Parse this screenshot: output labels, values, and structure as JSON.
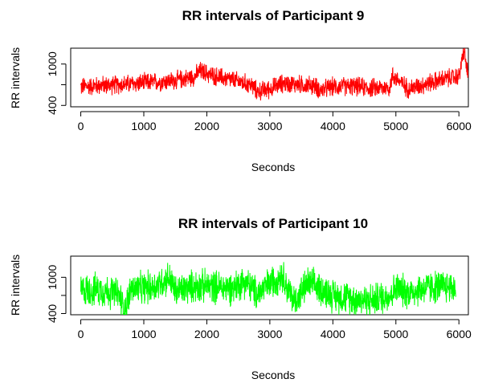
{
  "chart_data": [
    {
      "type": "line",
      "title": "RR intervals of Participant 9",
      "xlabel": "Seconds",
      "ylabel": "RR intervals",
      "x_ticks": [
        0,
        1000,
        2000,
        3000,
        4000,
        5000,
        6000
      ],
      "y_ticks": [
        400,
        1000
      ],
      "xlim": [
        -160,
        6150
      ],
      "ylim": [
        380,
        1230
      ],
      "grid": false,
      "legend": "none",
      "color": "#ff0000",
      "series": [
        {
          "x": [
            0,
            300,
            600,
            900,
            1200,
            1500,
            1800,
            1900,
            2100,
            2400,
            2700,
            2800,
            3000,
            3200,
            3500,
            3700,
            3800,
            4000,
            4300,
            4600,
            4900,
            4950,
            5200,
            5500,
            5800,
            6000,
            6080,
            6150
          ],
          "y": [
            670,
            690,
            700,
            720,
            740,
            760,
            820,
            900,
            830,
            770,
            700,
            600,
            640,
            720,
            700,
            690,
            620,
            670,
            680,
            650,
            660,
            830,
            640,
            720,
            790,
            820,
            1200,
            800
          ]
        }
      ]
    },
    {
      "type": "line",
      "title": "RR intervals of Participant 10",
      "xlabel": "Seconds",
      "ylabel": "RR intervals",
      "x_ticks": [
        0,
        1000,
        2000,
        3000,
        4000,
        5000,
        6000
      ],
      "y_ticks": [
        400,
        1000
      ],
      "xlim": [
        -160,
        6150
      ],
      "ylim": [
        380,
        1350
      ],
      "grid": false,
      "legend": "none",
      "color": "#00ff00",
      "series": [
        {
          "x": [
            0,
            300,
            600,
            700,
            800,
            900,
            1200,
            1400,
            1500,
            1800,
            2100,
            2400,
            2600,
            2800,
            3000,
            3200,
            3300,
            3400,
            3600,
            3800,
            4000,
            4300,
            4600,
            4900,
            5000,
            5200,
            5500,
            5800,
            5950
          ],
          "y": [
            780,
            800,
            720,
            450,
            820,
            800,
            860,
            1000,
            760,
            860,
            850,
            820,
            940,
            720,
            900,
            1050,
            760,
            600,
            900,
            820,
            700,
            650,
            620,
            700,
            820,
            750,
            830,
            850,
            830
          ]
        }
      ]
    }
  ]
}
